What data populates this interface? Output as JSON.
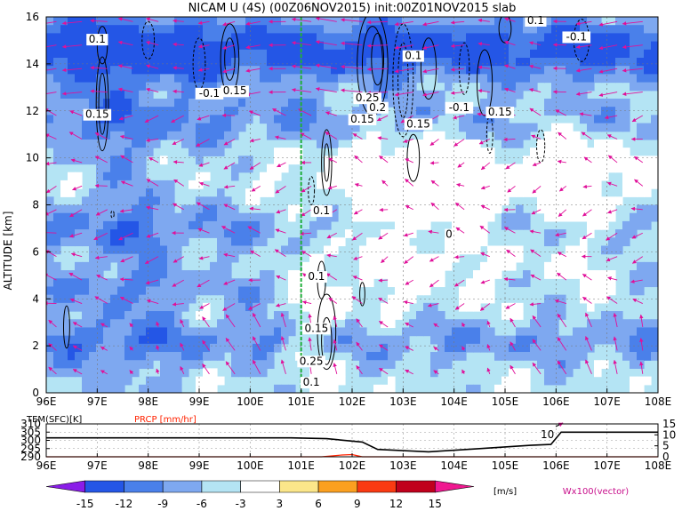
{
  "title": "NICAM U (4S) (00Z06NOV2015) init:00Z01NOV2015 slab",
  "chart_data": [
    {
      "type": "heatmap",
      "title": "NICAM U (4S) (00Z06NOV2015) init:00Z01NOV2015 slab",
      "xlabel": "",
      "ylabel": "ALTITUDE [km]",
      "x_ticks": [
        "96E",
        "97E",
        "98E",
        "99E",
        "100E",
        "101E",
        "102E",
        "103E",
        "104E",
        "105E",
        "106E",
        "107E",
        "108E"
      ],
      "y_ticks": [
        "0",
        "2",
        "4",
        "6",
        "8",
        "10",
        "12",
        "14",
        "16"
      ],
      "xlim": [
        96,
        108
      ],
      "ylim": [
        0,
        16
      ],
      "grid": true,
      "marker_line_x": 101.0,
      "contour_labels": [
        {
          "text": "0.1",
          "x": 97.0,
          "y": 14.9
        },
        {
          "text": "0.15",
          "x": 97.0,
          "y": 11.7
        },
        {
          "text": "-0.1",
          "x": 99.2,
          "y": 12.6
        },
        {
          "text": "0.15",
          "x": 99.7,
          "y": 12.7
        },
        {
          "text": "0.1",
          "x": 101.4,
          "y": 7.6
        },
        {
          "text": "0.1",
          "x": 101.3,
          "y": 4.8
        },
        {
          "text": "0.15",
          "x": 101.3,
          "y": 2.6
        },
        {
          "text": "0.25",
          "x": 101.2,
          "y": 1.2
        },
        {
          "text": "0.1",
          "x": 101.2,
          "y": 0.3
        },
        {
          "text": "0.25",
          "x": 102.3,
          "y": 12.4
        },
        {
          "text": "0.2",
          "x": 102.5,
          "y": 12.0
        },
        {
          "text": "0.15",
          "x": 102.2,
          "y": 11.5
        },
        {
          "text": "0.1",
          "x": 103.2,
          "y": 14.2
        },
        {
          "text": "0.15",
          "x": 103.3,
          "y": 11.3
        },
        {
          "text": "-0.1",
          "x": 104.1,
          "y": 12.0
        },
        {
          "text": "0.15",
          "x": 104.9,
          "y": 11.8
        },
        {
          "text": "0.1",
          "x": 105.6,
          "y": 15.7
        },
        {
          "text": "-0.1",
          "x": 106.4,
          "y": 15.0
        },
        {
          "text": "0",
          "x": 103.9,
          "y": 6.6
        }
      ]
    },
    {
      "type": "line",
      "series": [
        {
          "name": "TEM(SFC)[K]",
          "color": "#000000",
          "x": [
            96,
            100.8,
            101.5,
            102.2,
            102.5,
            103.5,
            104.5,
            105.5,
            105.9,
            106.1,
            108
          ],
          "values": [
            301.5,
            301.5,
            301,
            299,
            294.5,
            293,
            295,
            297,
            297.5,
            305,
            305
          ]
        },
        {
          "name": "PRCP [mm/hr]",
          "color": "#ff2200",
          "x": [
            96,
            101.4,
            101.8,
            102.0,
            102.2,
            108
          ],
          "values": [
            0,
            0,
            0.8,
            1.0,
            0,
            0
          ]
        }
      ],
      "x_ticks": [
        "96E",
        "97E",
        "98E",
        "99E",
        "100E",
        "101E",
        "102E",
        "103E",
        "104E",
        "105E",
        "106E",
        "107E",
        "108E"
      ],
      "y_ticks_left": [
        "290",
        "295",
        "300",
        "305",
        "310"
      ],
      "y_ticks_right": [
        "0",
        "5",
        "10",
        "15"
      ],
      "ylim_left": [
        290,
        310
      ],
      "ylim_right": [
        0,
        15
      ],
      "annotation": "10"
    }
  ],
  "legend": {
    "labels": [
      "-15",
      "-12",
      "-9",
      "-6",
      "-3",
      "3",
      "6",
      "9",
      "12",
      "15"
    ],
    "colors": [
      "#8a1de8",
      "#2456e6",
      "#4a80ea",
      "#7ea8f0",
      "#b4e4f4",
      "#ffffff",
      "#fbe68a",
      "#fba020",
      "#fa3a12",
      "#c0001c",
      "#f01890"
    ],
    "unit": "[m/s]",
    "vector_note": "Wx100(vector)"
  }
}
